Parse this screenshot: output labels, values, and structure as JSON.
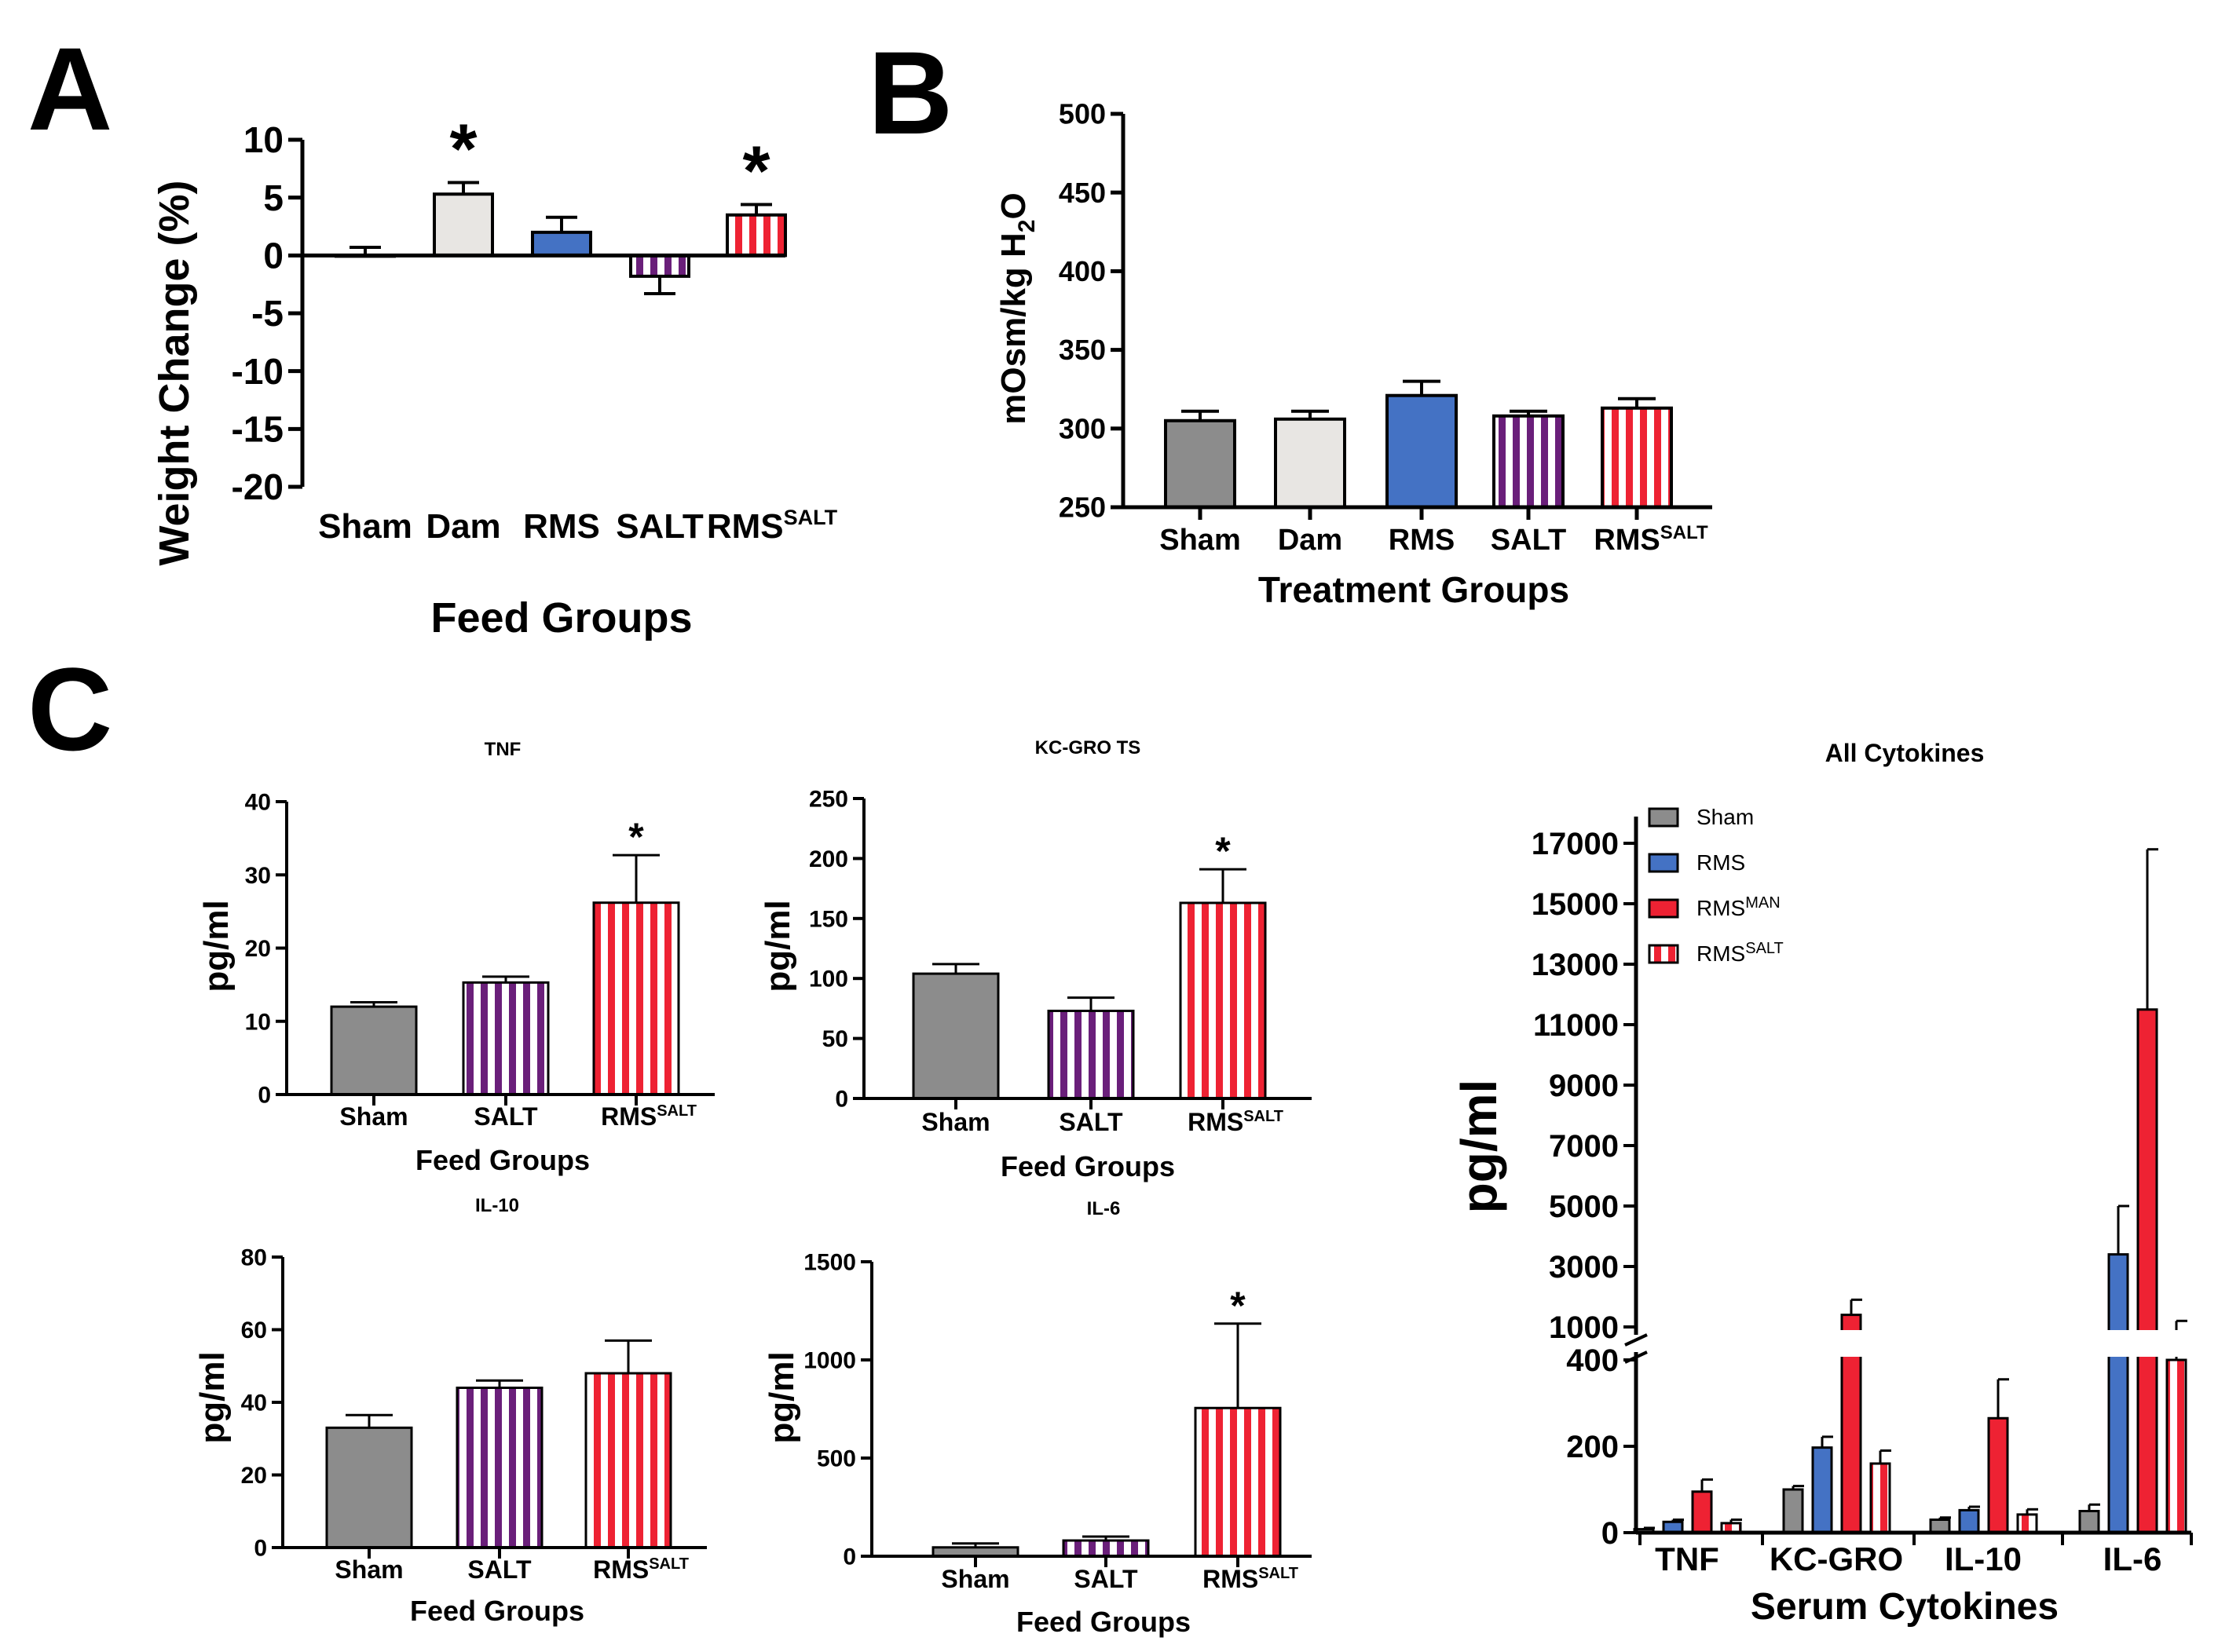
{
  "figure": {
    "panel_labels": [
      "A",
      "B",
      "C"
    ]
  },
  "colors": {
    "sham": "#8c8c8c",
    "dam": "#e8e6e3",
    "rms": "#4472c4",
    "salt": "#6a1f7a",
    "rms_salt": "#ee2233",
    "rms_man": "#ee2233",
    "axis": "#000000"
  },
  "chart_data": [
    {
      "id": "A",
      "type": "bar",
      "title": "",
      "xlabel": "Feed Groups",
      "ylabel": "Weight Change (%)",
      "ylim": [
        -20,
        10
      ],
      "yticks": [
        "10",
        "5",
        "0",
        "-5",
        "-10",
        "-15",
        "-20"
      ],
      "categories": [
        {
          "base": "Sham",
          "sup": ""
        },
        {
          "base": "Dam",
          "sup": ""
        },
        {
          "base": "RMS",
          "sup": ""
        },
        {
          "base": "SALT",
          "sup": ""
        },
        {
          "base": "RMS",
          "sup": "SALT"
        }
      ],
      "values": [
        0.0,
        5.3,
        2.0,
        -1.8,
        3.5
      ],
      "errors": [
        0.7,
        1.0,
        1.3,
        1.5,
        0.9
      ],
      "styles": [
        "sham",
        "dam",
        "rms",
        "salt",
        "rms_salt"
      ],
      "significance": [
        "",
        "*",
        "",
        "",
        "*"
      ]
    },
    {
      "id": "B",
      "type": "bar",
      "title": "",
      "xlabel": "Treatment Groups",
      "ylabel": "mOsm/kg H2O",
      "ylabel_parts": {
        "main": "mOsm/kg H",
        "sub": "2",
        "end": "O"
      },
      "ylim": [
        250,
        500
      ],
      "yticks": [
        "500",
        "450",
        "400",
        "350",
        "300",
        "250"
      ],
      "categories": [
        {
          "base": "Sham",
          "sup": ""
        },
        {
          "base": "Dam",
          "sup": ""
        },
        {
          "base": "RMS",
          "sup": ""
        },
        {
          "base": "SALT",
          "sup": ""
        },
        {
          "base": "RMS",
          "sup": "SALT"
        }
      ],
      "values": [
        305,
        306,
        321,
        308,
        313
      ],
      "errors": [
        6,
        5,
        9,
        3,
        6
      ],
      "styles": [
        "sham",
        "dam",
        "rms",
        "salt",
        "rms_salt"
      ],
      "significance": [
        "",
        "",
        "",
        "",
        ""
      ]
    },
    {
      "id": "C-TNF",
      "type": "bar",
      "title": "TNF",
      "xlabel": "Feed Groups",
      "ylabel": "pg/ml",
      "ylim": [
        0,
        40
      ],
      "yticks": [
        "40",
        "30",
        "20",
        "10",
        "0"
      ],
      "categories": [
        {
          "base": "Sham",
          "sup": ""
        },
        {
          "base": "SALT",
          "sup": ""
        },
        {
          "base": "RMS",
          "sup": "SALT"
        }
      ],
      "values": [
        12,
        15.3,
        26.2
      ],
      "errors": [
        0.6,
        0.8,
        6.5
      ],
      "styles": [
        "sham",
        "salt",
        "rms_salt"
      ],
      "significance": [
        "",
        "",
        "*"
      ]
    },
    {
      "id": "C-KC",
      "type": "bar",
      "title": "KC-GRO TS",
      "xlabel": "Feed Groups",
      "ylabel": "pg/ml",
      "ylim": [
        0,
        250
      ],
      "yticks": [
        "250",
        "200",
        "150",
        "100",
        "50",
        "0"
      ],
      "categories": [
        {
          "base": "Sham",
          "sup": ""
        },
        {
          "base": "SALT",
          "sup": ""
        },
        {
          "base": "RMS",
          "sup": "SALT"
        }
      ],
      "values": [
        104,
        73,
        163
      ],
      "errors": [
        8,
        11,
        28
      ],
      "styles": [
        "sham",
        "salt",
        "rms_salt"
      ],
      "significance": [
        "",
        "",
        "*"
      ]
    },
    {
      "id": "C-IL10",
      "type": "bar",
      "title": "IL-10",
      "xlabel": "Feed Groups",
      "ylabel": "pg/ml",
      "ylim": [
        0,
        80
      ],
      "yticks": [
        "80",
        "60",
        "40",
        "20",
        "0"
      ],
      "categories": [
        {
          "base": "Sham",
          "sup": ""
        },
        {
          "base": "SALT",
          "sup": ""
        },
        {
          "base": "RMS",
          "sup": "SALT"
        }
      ],
      "values": [
        33,
        44,
        48
      ],
      "errors": [
        3.5,
        2,
        9
      ],
      "styles": [
        "sham",
        "salt",
        "rms_salt"
      ],
      "significance": [
        "",
        "",
        ""
      ]
    },
    {
      "id": "C-IL6",
      "type": "bar",
      "title": "IL-6",
      "xlabel": "Feed Groups",
      "ylabel": "pg/ml",
      "ylim": [
        0,
        1500
      ],
      "yticks": [
        "1500",
        "1000",
        "500",
        "0"
      ],
      "categories": [
        {
          "base": "Sham",
          "sup": ""
        },
        {
          "base": "SALT",
          "sup": ""
        },
        {
          "base": "RMS",
          "sup": "SALT"
        }
      ],
      "values": [
        45,
        80,
        755
      ],
      "errors": [
        20,
        20,
        430
      ],
      "styles": [
        "sham",
        "salt",
        "rms_salt"
      ],
      "significance": [
        "",
        "",
        "*"
      ]
    },
    {
      "id": "C-All",
      "type": "bar",
      "title": "All Cytokines",
      "xlabel": "Serum Cytokines",
      "ylabel": "pg/ml",
      "axis_break": [
        400,
        1000
      ],
      "lower_ylim": [
        0,
        400
      ],
      "upper_ylim": [
        1000,
        17000
      ],
      "lower_yticks": [
        "400",
        "200",
        "0"
      ],
      "upper_yticks": [
        "17000",
        "15000",
        "13000",
        "11000",
        "9000",
        "7000",
        "5000",
        "3000",
        "1000"
      ],
      "categories": [
        "TNF",
        "KC-GRO",
        "IL-10",
        "IL-6"
      ],
      "legend": [
        {
          "base": "Sham",
          "sup": "",
          "style": "sham"
        },
        {
          "base": "RMS",
          "sup": "",
          "style": "rms"
        },
        {
          "base": "RMS",
          "sup": "MAN",
          "style": "rms_man"
        },
        {
          "base": "RMS",
          "sup": "SALT",
          "style": "rms_salt"
        }
      ],
      "legend_position": "top-left",
      "series": [
        {
          "name": "Sham",
          "style": "sham",
          "values": [
            8,
            100,
            30,
            50
          ],
          "errors": [
            3,
            8,
            5,
            15
          ]
        },
        {
          "name": "RMS",
          "style": "rms",
          "values": [
            25,
            197,
            52,
            3400
          ],
          "errors": [
            5,
            25,
            8,
            1600
          ]
        },
        {
          "name": "RMS MAN",
          "style": "rms_man",
          "values": [
            95,
            1400,
            265,
            11500
          ],
          "errors": [
            28,
            500,
            90,
            5300
          ]
        },
        {
          "name": "RMS SALT",
          "style": "rms_salt",
          "values": [
            22,
            160,
            42,
            800
          ],
          "errors": [
            8,
            30,
            12,
            400
          ]
        }
      ]
    }
  ]
}
